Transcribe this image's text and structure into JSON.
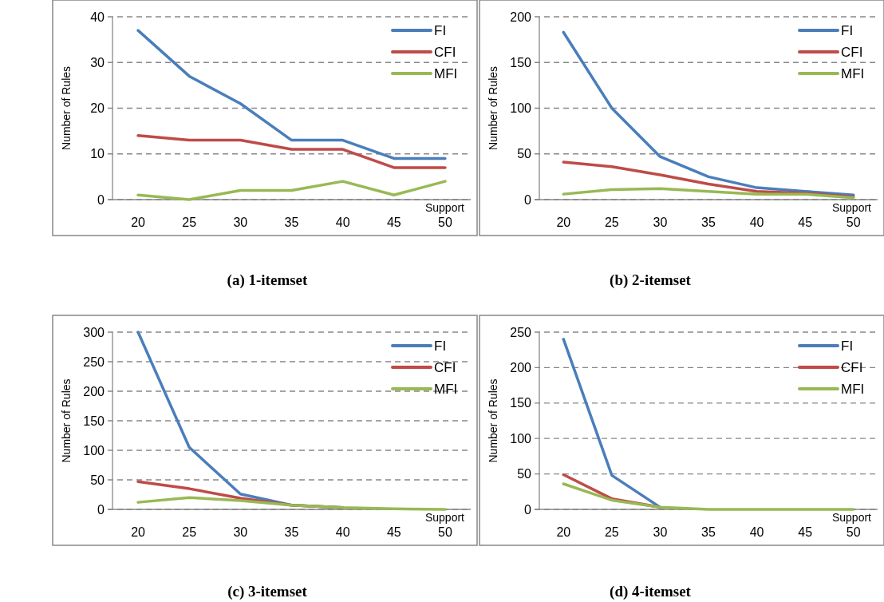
{
  "chart_data": [
    {
      "type": "line",
      "title": "(a) 1-itemset",
      "xlabel": "Support",
      "ylabel": "Number of Rules",
      "categories": [
        "20",
        "25",
        "30",
        "35",
        "40",
        "45",
        "50"
      ],
      "ylim": [
        0,
        40
      ],
      "yticks": [
        0,
        10,
        20,
        30,
        40
      ],
      "grid": "y",
      "legend": "top right",
      "series": [
        {
          "name": "FI",
          "color": "#4a7ebb",
          "values": [
            37,
            27,
            21,
            13,
            13,
            9,
            9
          ]
        },
        {
          "name": "CFI",
          "color": "#be4b48",
          "values": [
            14,
            13,
            13,
            11,
            11,
            7,
            7
          ]
        },
        {
          "name": "MFI",
          "color": "#98b954",
          "values": [
            1,
            0,
            2,
            2,
            4,
            1,
            4
          ]
        }
      ]
    },
    {
      "type": "line",
      "title": "(b) 2-itemset",
      "xlabel": "Support",
      "ylabel": "Number of Rules",
      "categories": [
        "20",
        "25",
        "30",
        "35",
        "40",
        "45",
        "50"
      ],
      "ylim": [
        0,
        200
      ],
      "yticks": [
        0,
        50,
        100,
        150,
        200
      ],
      "grid": "y",
      "legend": "top right",
      "series": [
        {
          "name": "FI",
          "color": "#4a7ebb",
          "values": [
            183,
            100,
            47,
            25,
            13,
            9,
            5
          ]
        },
        {
          "name": "CFI",
          "color": "#be4b48",
          "values": [
            41,
            36,
            27,
            17,
            9,
            7,
            3
          ]
        },
        {
          "name": "MFI",
          "color": "#98b954",
          "values": [
            6,
            11,
            12,
            9,
            6,
            6,
            2
          ]
        }
      ]
    },
    {
      "type": "line",
      "title": "(c) 3-itemset",
      "xlabel": "Support",
      "ylabel": "Number of Rules",
      "categories": [
        "20",
        "25",
        "30",
        "35",
        "40",
        "45",
        "50"
      ],
      "ylim": [
        0,
        300
      ],
      "yticks": [
        0,
        50,
        100,
        150,
        200,
        250,
        300
      ],
      "grid": "y",
      "legend": "top right",
      "series": [
        {
          "name": "FI",
          "color": "#4a7ebb",
          "values": [
            300,
            105,
            26,
            7,
            3,
            null,
            null
          ]
        },
        {
          "name": "CFI",
          "color": "#be4b48",
          "values": [
            47,
            35,
            19,
            7,
            3,
            null,
            null
          ]
        },
        {
          "name": "MFI",
          "color": "#98b954",
          "values": [
            12,
            20,
            15,
            7,
            3,
            1,
            0
          ]
        }
      ]
    },
    {
      "type": "line",
      "title": "(d) 4-itemset",
      "xlabel": "Support",
      "ylabel": "Number of Rules",
      "categories": [
        "20",
        "25",
        "30",
        "35",
        "40",
        "45",
        "50"
      ],
      "ylim": [
        0,
        250
      ],
      "yticks": [
        0,
        50,
        100,
        150,
        200,
        250
      ],
      "grid": "y",
      "legend": "top right",
      "series": [
        {
          "name": "FI",
          "color": "#4a7ebb",
          "values": [
            240,
            48,
            3,
            null,
            null,
            null,
            null
          ]
        },
        {
          "name": "CFI",
          "color": "#be4b48",
          "values": [
            49,
            15,
            3,
            null,
            null,
            null,
            null
          ]
        },
        {
          "name": "MFI",
          "color": "#98b954",
          "values": [
            36,
            13,
            3,
            0,
            0,
            0,
            0
          ]
        }
      ]
    }
  ]
}
